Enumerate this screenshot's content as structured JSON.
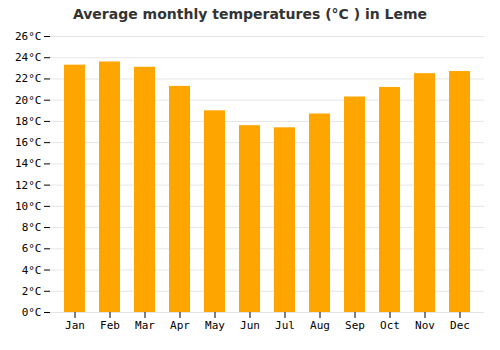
{
  "chart_data": {
    "type": "bar",
    "title": "Average monthly temperatures (°C ) in Leme",
    "categories": [
      "Jan",
      "Feb",
      "Mar",
      "Apr",
      "May",
      "Jun",
      "Jul",
      "Aug",
      "Sep",
      "Oct",
      "Nov",
      "Dec"
    ],
    "values": [
      23.3,
      23.6,
      23.1,
      21.3,
      19.0,
      17.6,
      17.4,
      18.7,
      20.3,
      21.2,
      22.5,
      22.7
    ],
    "color": "#FFA500",
    "ylim": [
      0,
      26
    ],
    "yticks": [
      {
        "value": 0,
        "label": "0°C"
      },
      {
        "value": 2,
        "label": "2°C"
      },
      {
        "value": 4,
        "label": "4°C"
      },
      {
        "value": 6,
        "label": "6°C"
      },
      {
        "value": 8,
        "label": "8°C"
      },
      {
        "value": 10,
        "label": "10°C"
      },
      {
        "value": 12,
        "label": "12°C"
      },
      {
        "value": 14,
        "label": "14°C"
      },
      {
        "value": 16,
        "label": "16°C"
      },
      {
        "value": 18,
        "label": "18°C"
      },
      {
        "value": 20,
        "label": "20°C"
      },
      {
        "value": 22,
        "label": "22°C"
      },
      {
        "value": 24,
        "label": "24°C"
      },
      {
        "value": 26,
        "label": "26°C"
      }
    ],
    "grid": true
  }
}
